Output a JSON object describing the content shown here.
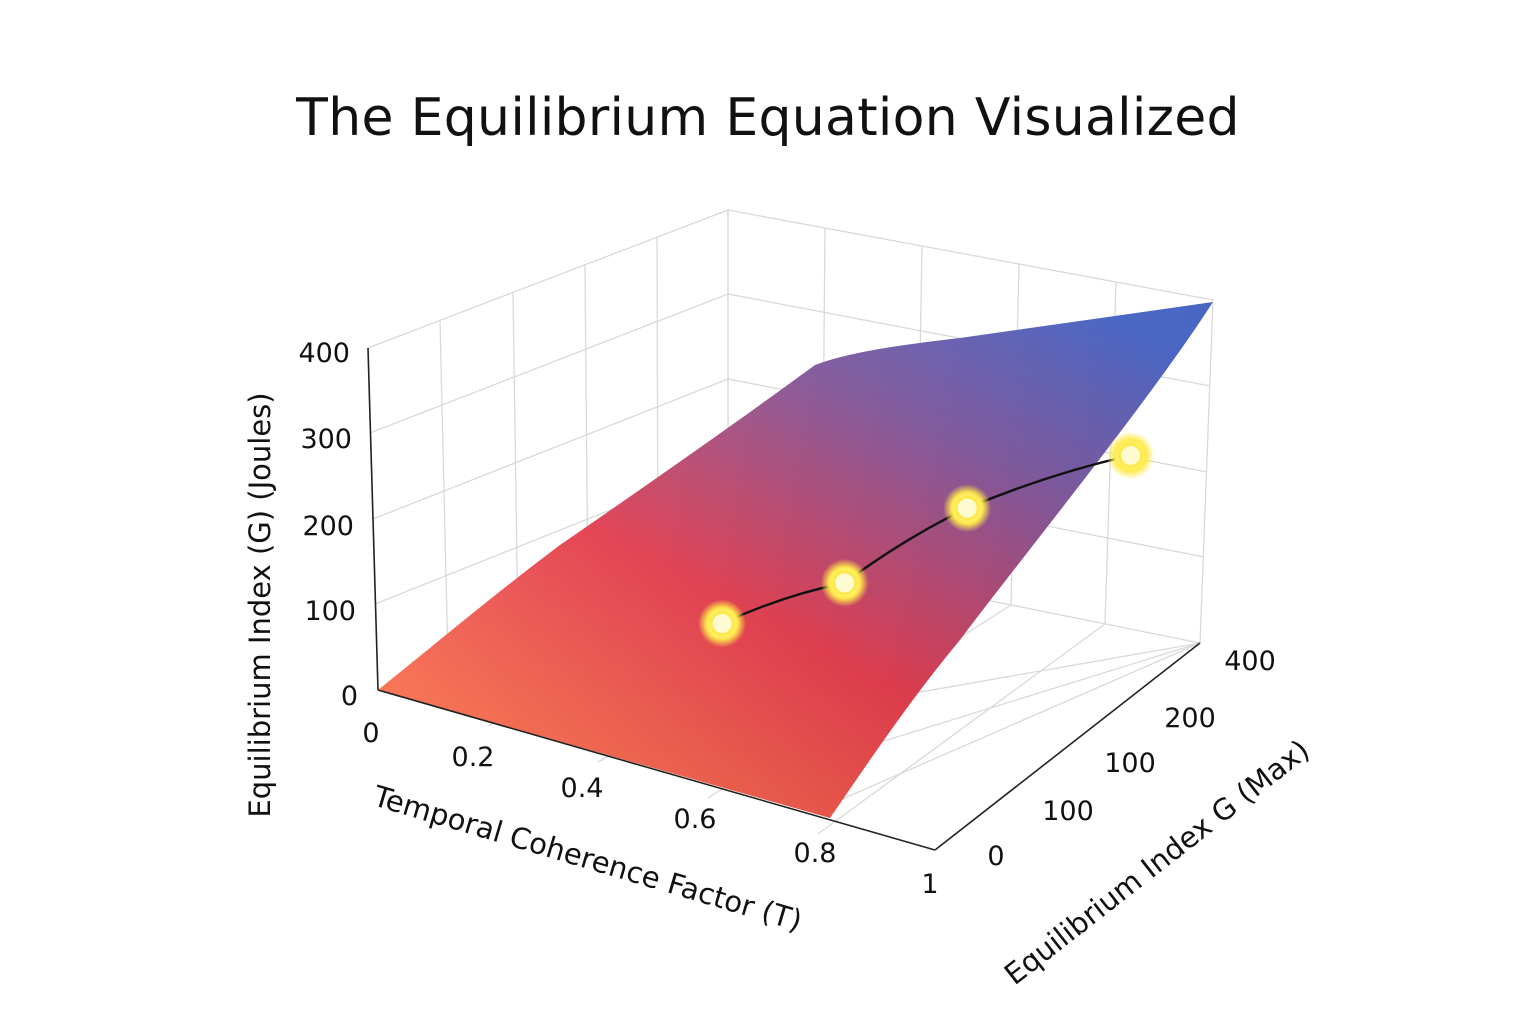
{
  "chart_data": {
    "type": "surface",
    "title": "The Equilibrium Equation Visualized",
    "xlabel": "Temporal Coherence Factor (T)",
    "ylabel": "Equilibrium Index G (Max)",
    "zlabel": "Equilibrium Index (G) (Joules)",
    "x_ticks": [
      "0",
      "0.2",
      "0.4",
      "0.6",
      "0.8",
      "1"
    ],
    "y_ticks": [
      "0",
      "100",
      "100",
      "200",
      "400"
    ],
    "z_ticks": [
      "0",
      "100",
      "200",
      "300",
      "400"
    ],
    "xlim": [
      0,
      1
    ],
    "zlim": [
      0,
      400
    ],
    "grid": true,
    "colormap": [
      "#ff7a3d",
      "#e8384a",
      "#8a5aa0",
      "#4f6fd4"
    ],
    "series": [
      {
        "marker_color": "#ffe94a",
        "line_color": "#111111",
        "points": [
          {
            "x": 0.3,
            "z": 55
          },
          {
            "x": 0.45,
            "z": 120
          },
          {
            "x": 0.6,
            "z": 225
          },
          {
            "x": 0.8,
            "z": 310
          }
        ]
      }
    ]
  }
}
